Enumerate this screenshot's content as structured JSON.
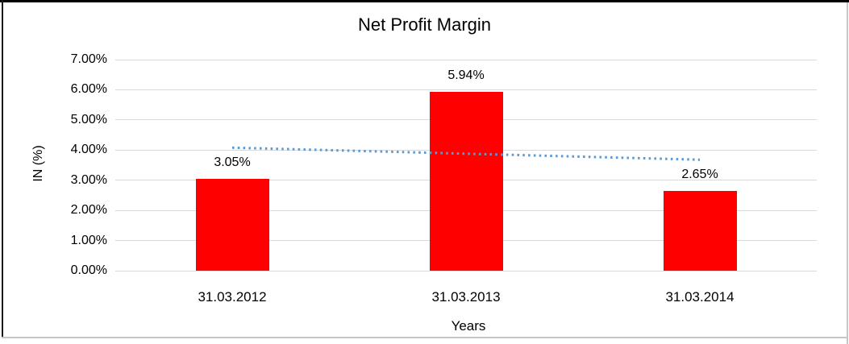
{
  "chart_data": {
    "type": "bar",
    "title": "Net Profit Margin",
    "xlabel": "Years",
    "ylabel": "IN (%)",
    "categories": [
      "31.03.2012",
      "31.03.2013",
      "31.03.2014"
    ],
    "values": [
      3.05,
      5.94,
      2.65
    ],
    "value_labels": [
      "3.05%",
      "5.94%",
      "2.65%"
    ],
    "ylim": [
      0,
      7
    ],
    "ytick_labels": [
      "0.00%",
      "1.00%",
      "2.00%",
      "3.00%",
      "4.00%",
      "5.00%",
      "6.00%",
      "7.00%"
    ],
    "grid": true,
    "legend_position": "none",
    "bar_color": "#FF0000",
    "gridline_color": "#D9D9D9",
    "text_color": "#000000",
    "trendline": {
      "kind": "linear",
      "style": "dotted",
      "color": "#5B9BD5",
      "endpoint_values": [
        4.08,
        3.68
      ]
    }
  }
}
